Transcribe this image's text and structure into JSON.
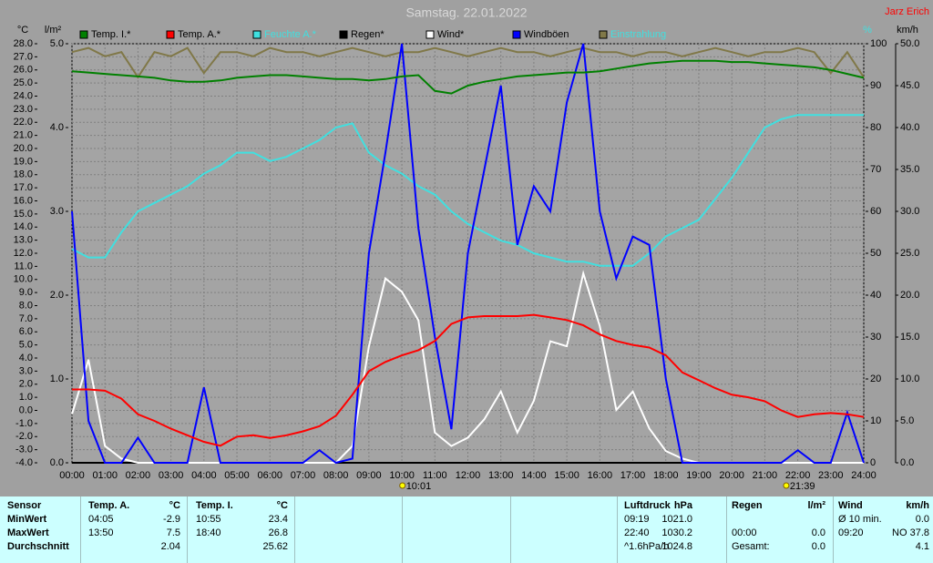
{
  "chart_data": {
    "type": "line",
    "title": "Samstag. 22.01.2022",
    "subtitle": "Jarz Erich",
    "axis_labels": {
      "y": "°C",
      "y2": "l/m²",
      "y3": "%",
      "y4": "km/h"
    },
    "xlim": [
      0,
      24
    ],
    "xticks": [
      {
        "value": 0,
        "label": "00:00"
      },
      {
        "value": 1,
        "label": "01:00"
      },
      {
        "value": 2,
        "label": "02:00"
      },
      {
        "value": 3,
        "label": "03:00"
      },
      {
        "value": 4,
        "label": "04:00"
      },
      {
        "value": 5,
        "label": "05:00"
      },
      {
        "value": 6,
        "label": "06:00"
      },
      {
        "value": 7,
        "label": "07:00"
      },
      {
        "value": 8,
        "label": "08:00"
      },
      {
        "value": 9,
        "label": "09:00"
      },
      {
        "value": 10,
        "label": "10:00"
      },
      {
        "value": 11,
        "label": "11:00"
      },
      {
        "value": 12,
        "label": "12:00"
      },
      {
        "value": 13,
        "label": "13:00"
      },
      {
        "value": 14,
        "label": "14:00"
      },
      {
        "value": 15,
        "label": "15:00"
      },
      {
        "value": 16,
        "label": "16:00"
      },
      {
        "value": 17,
        "label": "17:00"
      },
      {
        "value": 18,
        "label": "18:00"
      },
      {
        "value": 19,
        "label": "19:00"
      },
      {
        "value": 20,
        "label": "20:00"
      },
      {
        "value": 21,
        "label": "21:00"
      },
      {
        "value": 22,
        "label": "22:00"
      },
      {
        "value": 23,
        "label": "23:00"
      },
      {
        "value": 24,
        "label": "24:00"
      }
    ],
    "ylim": [
      -4,
      28
    ],
    "yticks": [
      {
        "value": 28,
        "label": "28.0"
      },
      {
        "value": 27,
        "label": "27.0"
      },
      {
        "value": 26,
        "label": "26.0"
      },
      {
        "value": 25,
        "label": "25.0"
      },
      {
        "value": 24,
        "label": "24.0"
      },
      {
        "value": 23,
        "label": "23.0"
      },
      {
        "value": 22,
        "label": "22.0"
      },
      {
        "value": 21,
        "label": "21.0"
      },
      {
        "value": 20,
        "label": "20.0"
      },
      {
        "value": 19,
        "label": "19.0"
      },
      {
        "value": 18,
        "label": "18.0"
      },
      {
        "value": 17,
        "label": "17.0"
      },
      {
        "value": 16,
        "label": "16.0"
      },
      {
        "value": 15,
        "label": "15.0"
      },
      {
        "value": 14,
        "label": "14.0"
      },
      {
        "value": 13,
        "label": "13.0"
      },
      {
        "value": 12,
        "label": "12.0"
      },
      {
        "value": 11,
        "label": "11.0"
      },
      {
        "value": 10,
        "label": "10.0"
      },
      {
        "value": 9,
        "label": "9.0"
      },
      {
        "value": 8,
        "label": "8.0"
      },
      {
        "value": 7,
        "label": "7.0"
      },
      {
        "value": 6,
        "label": "6.0"
      },
      {
        "value": 5,
        "label": "5.0"
      },
      {
        "value": 4,
        "label": "4.0"
      },
      {
        "value": 3,
        "label": "3.0"
      },
      {
        "value": 2,
        "label": "2.0"
      },
      {
        "value": 1,
        "label": "1.0"
      },
      {
        "value": 0,
        "label": "0.0"
      },
      {
        "value": -1,
        "label": "-1.0"
      },
      {
        "value": -2,
        "label": "-2.0"
      },
      {
        "value": -3,
        "label": "-3.0"
      },
      {
        "value": -4,
        "label": "-4.0"
      }
    ],
    "y2lim": [
      0,
      5
    ],
    "y2ticks": [
      {
        "value": 5,
        "label": "5.0"
      },
      {
        "value": 4,
        "label": "4.0"
      },
      {
        "value": 3,
        "label": "3.0"
      },
      {
        "value": 2,
        "label": "2.0"
      },
      {
        "value": 1,
        "label": "1.0"
      },
      {
        "value": 0,
        "label": "0.0"
      }
    ],
    "y3lim": [
      0,
      100
    ],
    "y3ticks": [
      100,
      90,
      80,
      70,
      60,
      50,
      40,
      30,
      20,
      10,
      0
    ],
    "y4lim": [
      0,
      50
    ],
    "y4ticks": [
      {
        "value": 50,
        "label": "50.0"
      },
      {
        "value": 45,
        "label": "45.0"
      },
      {
        "value": 40,
        "label": "40.0"
      },
      {
        "value": 35,
        "label": "35.0"
      },
      {
        "value": 30,
        "label": "30.0"
      },
      {
        "value": 25,
        "label": "25.0"
      },
      {
        "value": 20,
        "label": "20.0"
      },
      {
        "value": 15,
        "label": "15.0"
      },
      {
        "value": 10,
        "label": "10.0"
      },
      {
        "value": 5,
        "label": "5.0"
      },
      {
        "value": 0,
        "label": "0.0"
      }
    ],
    "grid": true,
    "x": [
      0,
      0.5,
      1,
      1.5,
      2,
      2.5,
      3,
      3.5,
      4,
      4.5,
      5,
      5.5,
      6,
      6.5,
      7,
      7.5,
      8,
      8.5,
      9,
      9.5,
      10,
      10.5,
      11,
      11.5,
      12,
      12.5,
      13,
      13.5,
      14,
      14.5,
      15,
      15.5,
      16,
      16.5,
      17,
      17.5,
      18,
      18.5,
      19,
      19.5,
      20,
      20.5,
      21,
      21.5,
      22,
      22.5,
      23,
      23.5,
      24
    ],
    "series": [
      {
        "name": "Temp. I.*",
        "color": "#008000",
        "axis": "y",
        "values": [
          25.9,
          25.8,
          25.7,
          25.6,
          25.5,
          25.4,
          25.2,
          25.1,
          25.1,
          25.2,
          25.4,
          25.5,
          25.6,
          25.6,
          25.5,
          25.4,
          25.3,
          25.3,
          25.2,
          25.3,
          25.5,
          25.6,
          24.4,
          24.2,
          24.8,
          25.1,
          25.3,
          25.5,
          25.6,
          25.7,
          25.8,
          25.8,
          25.9,
          26.1,
          26.3,
          26.5,
          26.6,
          26.7,
          26.7,
          26.7,
          26.6,
          26.6,
          26.5,
          26.4,
          26.3,
          26.2,
          26,
          25.7,
          25.4
        ]
      },
      {
        "name": "Temp. A.*",
        "color": "#ff0000",
        "axis": "y",
        "values": [
          1.6,
          1.6,
          1.5,
          0.9,
          -0.3,
          -0.8,
          -1.4,
          -1.9,
          -2.4,
          -2.7,
          -2.0,
          -1.9,
          -2.1,
          -1.9,
          -1.6,
          -1.2,
          -0.4,
          1.2,
          3.0,
          3.7,
          4.2,
          4.6,
          5.3,
          6.6,
          7.1,
          7.2,
          7.2,
          7.2,
          7.3,
          7.1,
          6.9,
          6.5,
          5.8,
          5.3,
          5.0,
          4.8,
          4.2,
          2.9,
          2.3,
          1.7,
          1.2,
          1.0,
          0.7,
          0.0,
          -0.5,
          -0.3,
          -0.2,
          -0.3,
          -0.5
        ]
      },
      {
        "name": "Feuchte A.*",
        "color": "#40e0e0",
        "label_color": "#40e0e0",
        "axis": "y3",
        "values": [
          51,
          49,
          49,
          55,
          60,
          62,
          64,
          66,
          69,
          71,
          74,
          74,
          72,
          73,
          75,
          77,
          80,
          81,
          74,
          71,
          69,
          66,
          64,
          60,
          57,
          55,
          53,
          52,
          50,
          49,
          48,
          48,
          47,
          47,
          47,
          50,
          54,
          56,
          58,
          63,
          68,
          74,
          80,
          82,
          83,
          83,
          83,
          83,
          83
        ]
      },
      {
        "name": "Regen*",
        "color": "#000000",
        "axis": "y2",
        "values": [
          0,
          0,
          0,
          0,
          0,
          0,
          0,
          0,
          0,
          0,
          0,
          0,
          0,
          0,
          0,
          0,
          0,
          0,
          0,
          0,
          0,
          0,
          0,
          0,
          0,
          0,
          0,
          0,
          0,
          0,
          0,
          0,
          0,
          0,
          0,
          0,
          0,
          0,
          0,
          0,
          0,
          0,
          0,
          0,
          0,
          0,
          0,
          0,
          0
        ]
      },
      {
        "name": "Wind*",
        "color": "#ffffff",
        "axis": "y4",
        "values": [
          5.8,
          12.3,
          2.0,
          0.5,
          0,
          0,
          0,
          0,
          0,
          0,
          0,
          0,
          0,
          0,
          0,
          0,
          0,
          2.0,
          13.9,
          22,
          20.4,
          17,
          3.6,
          2.0,
          3.0,
          5.2,
          8.5,
          3.6,
          7.4,
          14.5,
          13.9,
          22.6,
          16.3,
          6.3,
          8.5,
          4.1,
          1.4,
          0.5,
          0,
          0,
          0,
          0,
          0,
          0,
          0,
          0,
          0,
          0,
          0
        ]
      },
      {
        "name": "Windböen",
        "color": "#0000ff",
        "axis": "y4",
        "values": [
          30,
          5,
          0,
          0,
          3,
          0,
          0,
          0,
          9,
          0,
          0,
          0,
          0,
          0,
          0,
          1.5,
          0,
          0.5,
          25,
          37,
          50,
          28,
          15,
          4,
          25,
          35,
          45,
          26,
          33,
          30,
          43,
          50,
          30,
          22,
          27,
          26,
          10,
          0,
          0,
          0,
          0,
          0,
          0,
          0,
          1.5,
          0,
          0,
          6,
          0
        ]
      },
      {
        "name": "Einstrahlung",
        "color": "#807848",
        "label_color": "#40e0e0",
        "axis": "y3",
        "values": [
          98,
          99,
          97,
          98,
          92,
          98,
          97,
          99,
          93,
          98,
          98,
          97,
          99,
          98,
          98,
          97,
          98,
          99,
          98,
          97,
          98,
          98,
          99,
          98,
          97,
          98,
          99,
          98,
          98,
          97,
          98,
          99,
          98,
          98,
          97,
          98,
          98,
          97,
          98,
          99,
          98,
          97,
          98,
          98,
          99,
          98,
          93,
          98,
          92
        ]
      }
    ],
    "annotations": [
      {
        "text": "10:01",
        "x": 10.017
      },
      {
        "text": "21:39",
        "x": 21.65
      }
    ]
  },
  "table": {
    "header": [
      "Sensor",
      "Temp. A.",
      "°C",
      "Temp. I.",
      "°C",
      "Luftdruck",
      "hPa",
      "Regen",
      "l/m²",
      "Wind",
      "km/h"
    ],
    "rows": [
      [
        "MinWert",
        "04:05",
        "-2.9",
        "10:55",
        "23.4",
        "09:19",
        "1021.0",
        null,
        null,
        "Ø 10 min.",
        "0.0"
      ],
      [
        "MaxWert",
        "13:50",
        "7.5",
        "18:40",
        "26.8",
        "22:40",
        "1030.2",
        "00:00",
        "0.0",
        "09:20",
        "NO 37.8"
      ],
      [
        "Durchschnitt",
        null,
        "2.04",
        null,
        "25.62",
        "^1.6hPa/h",
        "1024.8",
        "Gesamt:",
        "0.0",
        null,
        "4.1"
      ]
    ]
  }
}
